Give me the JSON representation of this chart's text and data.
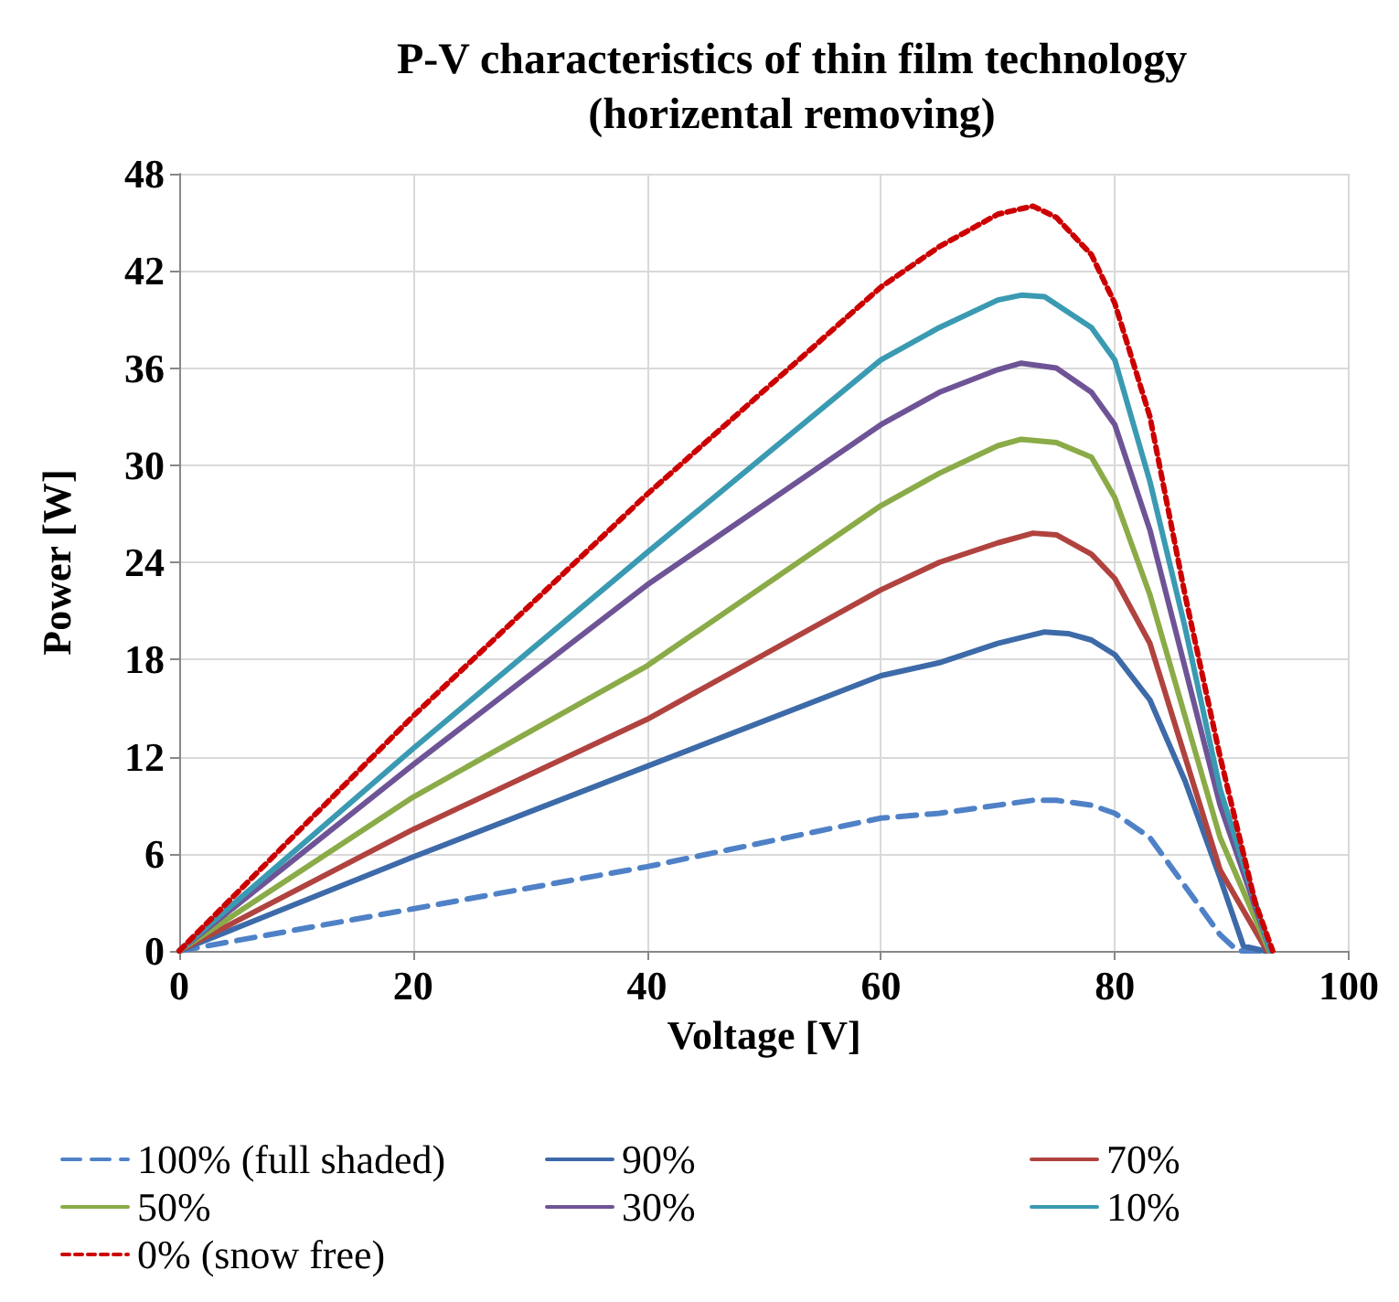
{
  "chart_data": {
    "type": "line",
    "title": "P-V characteristics of thin film technology\n(horizental removing)",
    "xlabel": "Voltage [V]",
    "ylabel": "Power [W]",
    "xlim": [
      0,
      100
    ],
    "xticks": [
      0,
      20,
      40,
      60,
      80,
      100
    ],
    "ylim": [
      0,
      48
    ],
    "yticks": [
      0,
      6,
      12,
      18,
      24,
      30,
      36,
      42,
      48
    ],
    "grid": true,
    "legend": "bottom",
    "marker": "none",
    "series": [
      {
        "name": "100% (full shaded)",
        "color": "#4f81c7",
        "line_style": "dashed",
        "x": [
          0,
          20,
          40,
          60,
          65,
          70,
          73,
          75,
          78,
          80,
          83,
          86,
          89,
          90.5,
          93
        ],
        "values": [
          0,
          2.6,
          5.2,
          8.2,
          8.5,
          9,
          9.3,
          9.3,
          9,
          8.5,
          7,
          4,
          1,
          0,
          0
        ]
      },
      {
        "name": "90%",
        "color": "#3d6aa8",
        "line_style": "solid",
        "x": [
          0,
          20,
          40,
          60,
          65,
          70,
          74,
          76,
          78,
          80,
          83,
          86,
          89,
          91,
          92.8
        ],
        "values": [
          0,
          5.8,
          11.4,
          17,
          17.8,
          19,
          19.7,
          19.6,
          19.2,
          18.3,
          15.5,
          10.5,
          4.5,
          0.3,
          0
        ]
      },
      {
        "name": "70%",
        "color": "#b0433f",
        "line_style": "solid",
        "x": [
          0,
          20,
          40,
          60,
          65,
          70,
          73,
          75,
          78,
          80,
          83,
          86,
          89,
          93
        ],
        "values": [
          0,
          7.5,
          14.3,
          22.3,
          24,
          25.2,
          25.8,
          25.7,
          24.5,
          23,
          19,
          12,
          5,
          0
        ]
      },
      {
        "name": "50%",
        "color": "#8aab47",
        "line_style": "solid",
        "x": [
          0,
          20,
          40,
          60,
          65,
          70,
          72,
          75,
          78,
          80,
          83,
          86,
          89,
          93.2
        ],
        "values": [
          0,
          9.5,
          17.6,
          27.5,
          29.5,
          31.2,
          31.6,
          31.4,
          30.5,
          28,
          22,
          14.5,
          7,
          0
        ]
      },
      {
        "name": "30%",
        "color": "#6e5496",
        "line_style": "solid",
        "x": [
          0,
          20,
          40,
          60,
          65,
          70,
          72,
          75,
          78,
          80,
          83,
          86,
          89,
          93.3
        ],
        "values": [
          0,
          11.5,
          22.6,
          32.5,
          34.5,
          35.9,
          36.3,
          36,
          34.5,
          32.5,
          26,
          17.5,
          9,
          0
        ]
      },
      {
        "name": "10%",
        "color": "#3a9ab2",
        "line_style": "solid",
        "x": [
          0,
          20,
          40,
          60,
          65,
          70,
          72,
          74,
          78,
          80,
          83,
          86,
          89,
          93.3
        ],
        "values": [
          0,
          12.5,
          24.6,
          36.5,
          38.5,
          40.2,
          40.5,
          40.4,
          38.5,
          36.5,
          29,
          20,
          10,
          0
        ]
      },
      {
        "name": "0% (snow free)",
        "color": "#cc0000",
        "line_style": "dotted",
        "x": [
          0,
          20,
          40,
          60,
          65,
          70,
          73,
          75,
          78,
          80,
          83,
          86,
          89,
          92,
          93.5
        ],
        "values": [
          0,
          14.5,
          28.2,
          41,
          43.5,
          45.5,
          46,
          45.3,
          43,
          40,
          33,
          22,
          12,
          3,
          0
        ]
      }
    ]
  }
}
